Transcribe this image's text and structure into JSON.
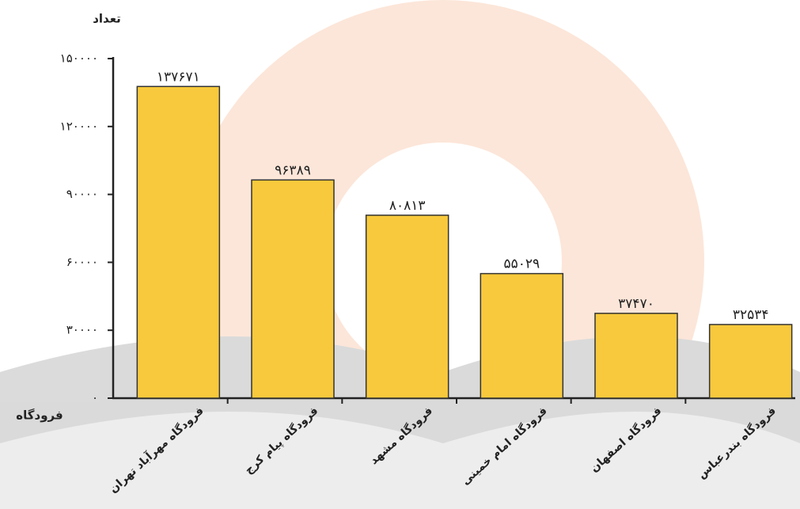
{
  "chart_data": {
    "type": "bar",
    "y_label": "تعداد",
    "x_label": "فرودگاه",
    "categories": [
      "فرودگاه مهرآباد تهران",
      "فرودگاه پیام کرج",
      "فرودگاه مشهد",
      "فرودگاه امام خمینی",
      "فرودگاه اصفهان",
      "فرودگاه بندرعباس"
    ],
    "values": [
      137671,
      96389,
      80813,
      55029,
      37470,
      32534
    ],
    "value_labels": [
      "۱۳۷۶۷۱",
      "۹۶۳۸۹",
      "۸۰۸۱۳",
      "۵۵۰۲۹",
      "۳۷۴۷۰",
      "۳۲۵۳۴"
    ],
    "color": "#f8c93c",
    "ylim": [
      0,
      150000
    ],
    "yticks": [
      {
        "value": 0,
        "label": "۰"
      },
      {
        "value": 30000,
        "label": "۳۰۰۰۰"
      },
      {
        "value": 60000,
        "label": "۶۰۰۰۰"
      },
      {
        "value": 90000,
        "label": "۹۰۰۰۰"
      },
      {
        "value": 120000,
        "label": "۱۲۰۰۰۰"
      },
      {
        "value": 150000,
        "label": "۱۵۰۰۰۰"
      }
    ]
  }
}
